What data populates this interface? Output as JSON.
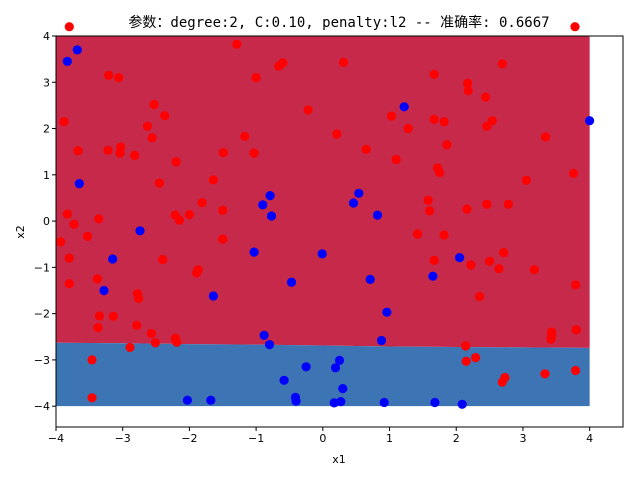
{
  "chart_data": {
    "type": "scatter",
    "title": "参数：degree:2, C:0.10, penalty:l2 -- 准确率: 0.6667",
    "xlabel": "x1",
    "ylabel": "x2",
    "xlim": [
      -4,
      4.5
    ],
    "ylim": [
      -4.45,
      4
    ],
    "xticks": [
      "−4",
      "−3",
      "−2",
      "−1",
      "0",
      "1",
      "2",
      "3",
      "4"
    ],
    "yticks": [
      "−4",
      "−3",
      "−2",
      "−1",
      "0",
      "1",
      "2",
      "3",
      "4"
    ],
    "grid": false,
    "colors": {
      "region_upper": "#c6294a",
      "region_lower": "#3d74b4",
      "class_red": "#ff0000",
      "class_blue": "#0000ff"
    },
    "regions": {
      "x_range": [
        -4,
        4
      ],
      "y_range": [
        -4,
        4
      ],
      "boundary": [
        [
          -4,
          -2.63
        ],
        [
          -3,
          -2.64
        ],
        [
          -2,
          -2.66
        ],
        [
          -1,
          -2.67
        ],
        [
          0,
          -2.69
        ],
        [
          1,
          -2.71
        ],
        [
          2,
          -2.72
        ],
        [
          3,
          -2.73
        ],
        [
          4,
          -2.74
        ]
      ]
    },
    "series": [
      {
        "color": "red",
        "points": [
          [
            -3.8,
            4.2
          ],
          [
            -3.88,
            2.15
          ],
          [
            -3.67,
            1.52
          ],
          [
            -3.83,
            0.15
          ],
          [
            -3.8,
            -0.8
          ],
          [
            -3.8,
            -1.35
          ],
          [
            -3.93,
            -0.45
          ],
          [
            -3.73,
            -0.07
          ],
          [
            -3.53,
            -0.33
          ],
          [
            -3.38,
            -1.25
          ],
          [
            -3.36,
            0.05
          ],
          [
            -3.35,
            -2.05
          ],
          [
            -3.37,
            -2.3
          ],
          [
            -3.46,
            -3.0
          ],
          [
            -3.46,
            -3.82
          ],
          [
            -3.21,
            3.15
          ],
          [
            -3.06,
            3.1
          ],
          [
            -3.22,
            1.53
          ],
          [
            -3.04,
            1.47
          ],
          [
            -3.03,
            1.6
          ],
          [
            -3.14,
            -2.06
          ],
          [
            -2.82,
            1.42
          ],
          [
            -2.63,
            2.05
          ],
          [
            -2.56,
            1.8
          ],
          [
            -2.53,
            2.52
          ],
          [
            -2.37,
            2.28
          ],
          [
            -2.45,
            0.82
          ],
          [
            -2.4,
            -0.83
          ],
          [
            -2.78,
            -1.57
          ],
          [
            -2.76,
            -1.67
          ],
          [
            -2.79,
            -2.25
          ],
          [
            -2.57,
            -2.43
          ],
          [
            -2.51,
            -2.63
          ],
          [
            -2.89,
            -2.73
          ],
          [
            -2.2,
            1.28
          ],
          [
            -2.21,
            0.13
          ],
          [
            -2.15,
            0.02
          ],
          [
            -2.0,
            0.14
          ],
          [
            -1.87,
            -1.05
          ],
          [
            -1.89,
            -1.12
          ],
          [
            -2.21,
            -2.53
          ],
          [
            -2.19,
            -2.62
          ],
          [
            -1.81,
            0.4
          ],
          [
            -1.64,
            0.89
          ],
          [
            -1.49,
            1.48
          ],
          [
            -1.5,
            0.23
          ],
          [
            -1.5,
            -0.39
          ],
          [
            -1.29,
            3.82
          ],
          [
            -1.17,
            1.83
          ],
          [
            -1.0,
            3.1
          ],
          [
            -1.03,
            1.47
          ],
          [
            -0.66,
            3.35
          ],
          [
            -0.6,
            3.42
          ],
          [
            -0.22,
            2.4
          ],
          [
            0.31,
            3.43
          ],
          [
            0.21,
            1.88
          ],
          [
            0.65,
            1.55
          ],
          [
            1.03,
            2.27
          ],
          [
            1.28,
            2.0
          ],
          [
            1.1,
            1.33
          ],
          [
            1.42,
            -0.28
          ],
          [
            1.58,
            0.45
          ],
          [
            1.6,
            0.22
          ],
          [
            1.67,
            2.2
          ],
          [
            1.67,
            3.17
          ],
          [
            1.72,
            1.15
          ],
          [
            1.75,
            1.05
          ],
          [
            1.82,
            2.15
          ],
          [
            1.86,
            1.65
          ],
          [
            1.82,
            -0.3
          ],
          [
            1.67,
            -0.85
          ],
          [
            2.17,
            2.98
          ],
          [
            2.18,
            2.82
          ],
          [
            2.54,
            2.17
          ],
          [
            2.44,
            2.68
          ],
          [
            2.46,
            2.05
          ],
          [
            2.69,
            3.4
          ],
          [
            2.16,
            0.26
          ],
          [
            2.46,
            0.36
          ],
          [
            2.22,
            -0.95
          ],
          [
            2.5,
            -0.87
          ],
          [
            2.64,
            -1.03
          ],
          [
            2.35,
            -1.63
          ],
          [
            2.71,
            -0.68
          ],
          [
            2.78,
            0.36
          ],
          [
            3.05,
            0.88
          ],
          [
            3.17,
            -1.05
          ],
          [
            3.34,
            1.82
          ],
          [
            3.43,
            -2.4
          ],
          [
            3.43,
            -2.48
          ],
          [
            3.42,
            -2.55
          ],
          [
            3.33,
            -3.3
          ],
          [
            2.14,
            -2.7
          ],
          [
            2.15,
            -3.03
          ],
          [
            2.29,
            -2.95
          ],
          [
            2.69,
            -3.48
          ],
          [
            2.73,
            -3.38
          ],
          [
            3.76,
            1.03
          ],
          [
            3.79,
            -1.38
          ],
          [
            3.8,
            -2.35
          ],
          [
            3.79,
            -3.23
          ],
          [
            3.78,
            4.2
          ]
        ]
      },
      {
        "color": "blue",
        "points": [
          [
            -3.68,
            3.7
          ],
          [
            -3.83,
            3.45
          ],
          [
            -3.65,
            0.81
          ],
          [
            -3.15,
            -0.82
          ],
          [
            -3.28,
            -1.5
          ],
          [
            -2.74,
            -0.21
          ],
          [
            -1.64,
            -1.62
          ],
          [
            -2.03,
            -3.87
          ],
          [
            -1.68,
            -3.87
          ],
          [
            -1.03,
            -0.67
          ],
          [
            -0.9,
            0.35
          ],
          [
            -0.79,
            0.55
          ],
          [
            -0.77,
            0.11
          ],
          [
            -0.88,
            -2.47
          ],
          [
            -0.8,
            -2.67
          ],
          [
            -0.47,
            -1.32
          ],
          [
            -0.58,
            -3.44
          ],
          [
            -0.41,
            -3.81
          ],
          [
            -0.4,
            -3.89
          ],
          [
            -0.25,
            -3.15
          ],
          [
            -0.01,
            -0.71
          ],
          [
            0.54,
            0.6
          ],
          [
            0.46,
            0.39
          ],
          [
            0.71,
            -1.26
          ],
          [
            0.82,
            0.13
          ],
          [
            0.96,
            -1.97
          ],
          [
            0.88,
            -2.58
          ],
          [
            0.25,
            -3.01
          ],
          [
            0.19,
            -3.17
          ],
          [
            0.3,
            -3.62
          ],
          [
            0.17,
            -3.93
          ],
          [
            0.27,
            -3.9
          ],
          [
            0.92,
            -3.92
          ],
          [
            1.22,
            2.47
          ],
          [
            1.65,
            -1.19
          ],
          [
            2.05,
            -0.79
          ],
          [
            1.68,
            -3.92
          ],
          [
            2.09,
            -3.96
          ],
          [
            4.0,
            2.17
          ]
        ]
      }
    ]
  }
}
